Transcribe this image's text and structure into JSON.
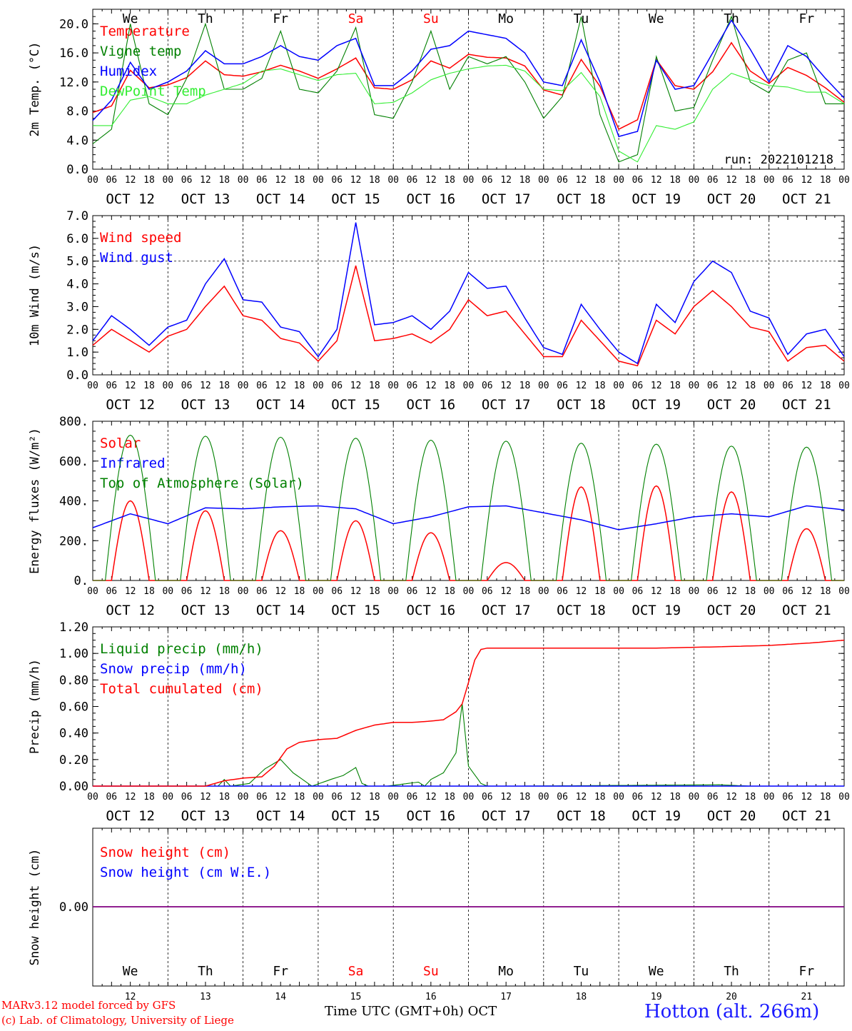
{
  "colors": {
    "red": "#ff0000",
    "blue": "#0000ff",
    "green": "#008000",
    "lightgreen": "#33ee33",
    "purple": "#800080",
    "grid": "#000000"
  },
  "day_names": [
    "We",
    "Th",
    "Fr",
    "Sa",
    "Su",
    "Mo",
    "Tu",
    "We",
    "Th",
    "Fr"
  ],
  "weekend_days": [
    3,
    4
  ],
  "date_labels": [
    "OCT 12",
    "OCT 13",
    "OCT 14",
    "OCT 15",
    "OCT 16",
    "OCT 17",
    "OCT 18",
    "OCT 19",
    "OCT 20",
    "OCT 21"
  ],
  "hour_labels": [
    "00",
    "06",
    "12",
    "18"
  ],
  "bottom_day_numbers": [
    "12",
    "13",
    "14",
    "15",
    "16",
    "17",
    "18",
    "19",
    "20",
    "21"
  ],
  "footer": {
    "credit_line1": "MARv3.12 model forced by GFS",
    "credit_line2": "(c) Lab. of Climatology, University of Liege",
    "xlabel": "Time UTC (GMT+0h) OCT",
    "station": "Hotton (alt. 266m)"
  },
  "chart_data": [
    {
      "type": "line",
      "ylabel": "2m Temp. (°C)",
      "ylim": [
        0,
        22
      ],
      "yticks": [
        "0.0",
        "4.0",
        "8.0",
        "12.0",
        "16.0",
        "20.0"
      ],
      "run_label": "run: 2022101218",
      "x_unit": "hours from 2022-10-12 00 UTC",
      "series": [
        {
          "name": "Temperature",
          "color": "red",
          "x": [
            0,
            6,
            12,
            18,
            24,
            30,
            36,
            42,
            48,
            54,
            60,
            66,
            72,
            78,
            84,
            90,
            96,
            102,
            108,
            114,
            120,
            126,
            132,
            138,
            144,
            150,
            156,
            162,
            168,
            174,
            180,
            186,
            192,
            198,
            204,
            210,
            216,
            222,
            228,
            234,
            240
          ],
          "y": [
            7.8,
            8.7,
            13.6,
            11.2,
            11.6,
            12.6,
            14.9,
            13.0,
            12.8,
            13.4,
            14.3,
            13.5,
            12.5,
            13.8,
            15.3,
            11.2,
            11.0,
            12.3,
            14.9,
            13.9,
            15.8,
            15.4,
            15.3,
            14.2,
            10.9,
            10.2,
            15.1,
            11.4,
            5.5,
            6.8,
            15.1,
            11.5,
            11.0,
            13.4,
            17.4,
            13.5,
            11.8,
            14.0,
            12.9,
            11.2,
            9.2
          ]
        },
        {
          "name": "Vigne temp",
          "color": "green",
          "x": [
            0,
            6,
            12,
            18,
            24,
            30,
            36,
            42,
            48,
            54,
            60,
            66,
            72,
            78,
            84,
            90,
            96,
            102,
            108,
            114,
            120,
            126,
            132,
            138,
            144,
            150,
            156,
            162,
            168,
            174,
            180,
            186,
            192,
            198,
            204,
            210,
            216,
            222,
            228,
            234,
            240
          ],
          "y": [
            3.5,
            5.5,
            20.0,
            9.0,
            7.5,
            12.5,
            20.0,
            11.0,
            11.0,
            12.5,
            19.0,
            11.0,
            10.5,
            13.5,
            19.5,
            7.5,
            7.0,
            12.0,
            19.0,
            11.0,
            15.5,
            14.5,
            15.5,
            12.0,
            7.0,
            10.0,
            21.0,
            7.5,
            1.0,
            2.0,
            15.5,
            8.0,
            8.5,
            15.0,
            21.0,
            12.0,
            10.5,
            15.0,
            16.0,
            9.0,
            9.0
          ]
        },
        {
          "name": "Humidex",
          "color": "blue",
          "x": [
            0,
            6,
            12,
            18,
            24,
            30,
            36,
            42,
            48,
            54,
            60,
            66,
            72,
            78,
            84,
            90,
            96,
            102,
            108,
            114,
            120,
            126,
            132,
            138,
            144,
            150,
            156,
            162,
            168,
            174,
            180,
            186,
            192,
            198,
            204,
            210,
            216,
            222,
            228,
            234,
            240
          ],
          "y": [
            6.7,
            9.5,
            14.7,
            11.0,
            12.0,
            13.5,
            16.3,
            14.5,
            14.5,
            15.5,
            17.0,
            15.5,
            15.0,
            17.0,
            18.0,
            11.5,
            11.5,
            13.5,
            16.5,
            17.0,
            19.0,
            18.5,
            18.0,
            16.0,
            12.0,
            11.5,
            17.8,
            12.0,
            4.5,
            5.2,
            15.0,
            11.0,
            11.5,
            16.0,
            20.5,
            16.5,
            12.0,
            17.0,
            15.5,
            12.5,
            9.8
          ]
        },
        {
          "name": "DewPoint Temp",
          "color": "lightgreen",
          "x": [
            0,
            6,
            12,
            18,
            24,
            30,
            36,
            42,
            48,
            54,
            60,
            66,
            72,
            78,
            84,
            90,
            96,
            102,
            108,
            114,
            120,
            126,
            132,
            138,
            144,
            150,
            156,
            162,
            168,
            174,
            180,
            186,
            192,
            198,
            204,
            210,
            216,
            222,
            228,
            234,
            240
          ],
          "y": [
            6.0,
            6.0,
            9.5,
            10.0,
            9.0,
            9.0,
            10.2,
            11.0,
            11.8,
            13.5,
            13.8,
            13.0,
            12.2,
            13.0,
            13.2,
            9.0,
            9.2,
            10.5,
            12.3,
            13.2,
            13.8,
            14.2,
            14.3,
            13.5,
            11.0,
            10.8,
            13.3,
            10.0,
            2.5,
            1.0,
            6.0,
            5.5,
            6.5,
            11.0,
            13.2,
            12.3,
            11.5,
            11.3,
            10.6,
            10.6,
            9.0
          ]
        }
      ]
    },
    {
      "type": "line",
      "ylabel": "10m Wind (m/s)",
      "ylim": [
        0,
        7
      ],
      "yticks": [
        "0.0",
        "1.0",
        "2.0",
        "3.0",
        "4.0",
        "5.0",
        "6.0",
        "7.0"
      ],
      "reference_line": 5.0,
      "series": [
        {
          "name": "Wind speed",
          "color": "red",
          "x": [
            0,
            6,
            12,
            18,
            24,
            30,
            36,
            42,
            48,
            54,
            60,
            66,
            72,
            78,
            84,
            90,
            96,
            102,
            108,
            114,
            120,
            126,
            132,
            138,
            144,
            150,
            156,
            162,
            168,
            174,
            180,
            186,
            192,
            198,
            204,
            210,
            216,
            222,
            228,
            234,
            240
          ],
          "y": [
            1.3,
            2.0,
            1.5,
            1.0,
            1.7,
            2.0,
            3.0,
            3.9,
            2.6,
            2.4,
            1.6,
            1.4,
            0.6,
            1.5,
            4.8,
            1.5,
            1.6,
            1.8,
            1.4,
            2.0,
            3.3,
            2.6,
            2.8,
            1.8,
            0.8,
            0.8,
            2.4,
            1.5,
            0.6,
            0.4,
            2.4,
            1.8,
            3.0,
            3.7,
            3.0,
            2.1,
            1.9,
            0.6,
            1.2,
            1.3,
            0.6
          ]
        },
        {
          "name": "Wind gust",
          "color": "blue",
          "x": [
            0,
            6,
            12,
            18,
            24,
            30,
            36,
            42,
            48,
            54,
            60,
            66,
            72,
            78,
            84,
            90,
            96,
            102,
            108,
            114,
            120,
            126,
            132,
            138,
            144,
            150,
            156,
            162,
            168,
            174,
            180,
            186,
            192,
            198,
            204,
            210,
            216,
            222,
            228,
            234,
            240
          ],
          "y": [
            1.5,
            2.6,
            2.0,
            1.3,
            2.1,
            2.4,
            4.0,
            5.1,
            3.3,
            3.2,
            2.1,
            1.9,
            0.8,
            2.0,
            6.7,
            2.2,
            2.3,
            2.6,
            2.0,
            2.8,
            4.5,
            3.8,
            3.9,
            2.5,
            1.2,
            0.9,
            3.1,
            2.0,
            1.0,
            0.5,
            3.1,
            2.3,
            4.1,
            5.0,
            4.5,
            2.8,
            2.5,
            0.9,
            1.8,
            2.0,
            0.8
          ]
        }
      ]
    },
    {
      "type": "line",
      "ylabel": "Energy fluxes (W/m²)",
      "ylim": [
        0,
        800
      ],
      "yticks": [
        "0.",
        "200.",
        "400.",
        "600.",
        "800."
      ],
      "series": [
        {
          "name": "Solar",
          "color": "red",
          "peaks": [
            400,
            350,
            250,
            300,
            240,
            90,
            470,
            475,
            445,
            260
          ]
        },
        {
          "name": "Infrared",
          "color": "blue",
          "x": [
            0,
            12,
            24,
            36,
            48,
            60,
            72,
            84,
            96,
            108,
            120,
            132,
            144,
            156,
            168,
            180,
            192,
            204,
            216,
            228,
            240
          ],
          "y": [
            265,
            335,
            285,
            365,
            360,
            370,
            375,
            360,
            285,
            320,
            370,
            375,
            340,
            305,
            255,
            285,
            320,
            335,
            320,
            375,
            355
          ]
        },
        {
          "name": "Top of Atmosphere (Solar)",
          "color": "green",
          "peaks": [
            730,
            725,
            720,
            715,
            705,
            700,
            690,
            685,
            675,
            670
          ]
        }
      ]
    },
    {
      "type": "line",
      "ylabel": "Precip (mm/h)",
      "ylim": [
        0,
        1.2
      ],
      "yticks": [
        "0.00",
        "0.20",
        "0.40",
        "0.60",
        "0.80",
        "1.00",
        "1.20"
      ],
      "series": [
        {
          "name": "Liquid precip (mm/h)",
          "color": "green",
          "x": [
            0,
            40,
            42,
            44,
            50,
            55,
            60,
            64,
            70,
            76,
            80,
            84,
            86,
            88,
            94,
            104,
            106,
            108,
            112,
            116,
            118,
            120,
            124,
            126,
            128,
            130,
            132,
            136,
            200,
            210,
            240
          ],
          "y": [
            0,
            0,
            0.05,
            0,
            0.02,
            0.13,
            0.2,
            0.1,
            0,
            0.05,
            0.08,
            0.14,
            0.02,
            0,
            0,
            0.03,
            0,
            0.05,
            0.1,
            0.25,
            0.62,
            0.15,
            0.02,
            0,
            0,
            0,
            0,
            0,
            0.01,
            0,
            0
          ]
        },
        {
          "name": "Snow precip (mm/h)",
          "color": "blue",
          "x": [
            0,
            240
          ],
          "y": [
            0,
            0
          ]
        },
        {
          "name": "Total cumulated (cm)",
          "color": "red",
          "x": [
            0,
            36,
            42,
            48,
            54,
            58,
            62,
            66,
            72,
            78,
            84,
            90,
            96,
            102,
            108,
            112,
            116,
            118,
            120,
            122,
            124,
            126,
            132,
            150,
            180,
            200,
            216,
            230,
            240
          ],
          "y": [
            0,
            0,
            0.04,
            0.06,
            0.07,
            0.15,
            0.28,
            0.33,
            0.35,
            0.36,
            0.42,
            0.46,
            0.48,
            0.48,
            0.49,
            0.5,
            0.56,
            0.62,
            0.78,
            0.95,
            1.03,
            1.04,
            1.04,
            1.04,
            1.04,
            1.05,
            1.06,
            1.08,
            1.1
          ]
        }
      ]
    },
    {
      "type": "line",
      "ylabel": "Snow height (cm)",
      "yticks": [
        "0.00"
      ],
      "series": [
        {
          "name": "Snow height (cm)",
          "color": "red",
          "x": [
            0,
            240
          ],
          "y": [
            0,
            0
          ]
        },
        {
          "name": "Snow height (cm W.E.)",
          "color": "blue",
          "x": [
            0,
            240
          ],
          "y": [
            0,
            0
          ]
        }
      ]
    }
  ]
}
